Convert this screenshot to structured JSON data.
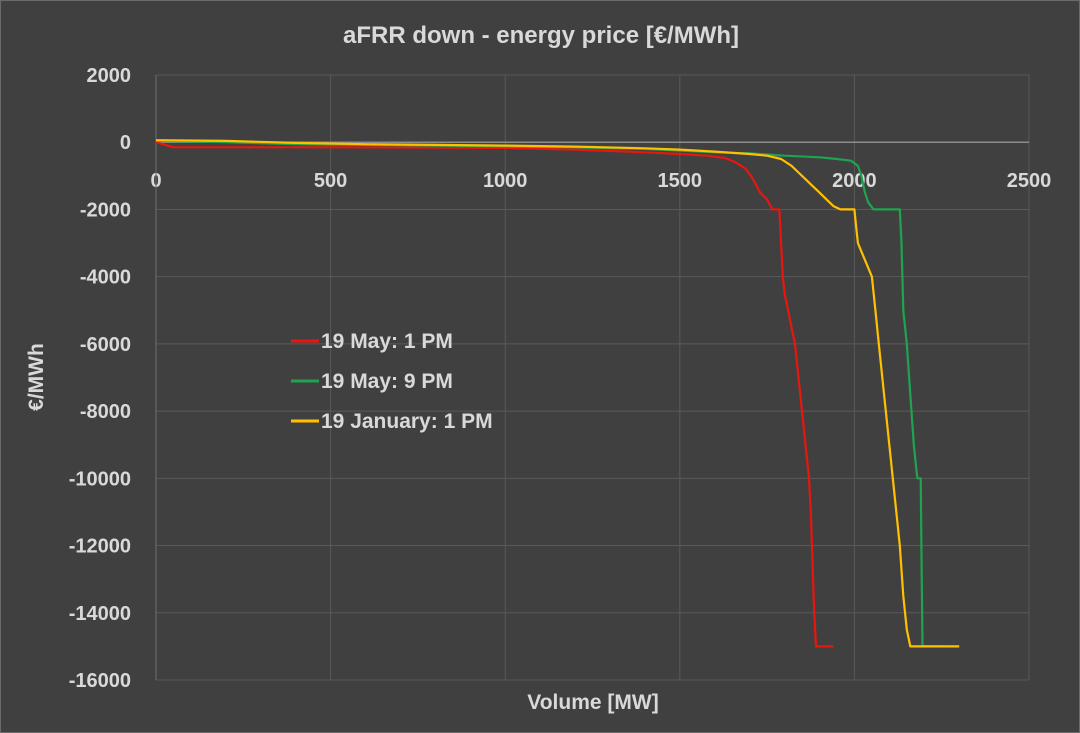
{
  "chart_data": {
    "type": "line",
    "title": "aFRR down - energy price [€/MWh]",
    "xlabel": "Volume [MW]",
    "ylabel": "€/MWh",
    "xlim": [
      0,
      2500
    ],
    "ylim": [
      -16000,
      2000
    ],
    "xticks": [
      0,
      500,
      1000,
      1500,
      2000,
      2500
    ],
    "yticks": [
      2000,
      0,
      -2000,
      -4000,
      -6000,
      -8000,
      -10000,
      -12000,
      -14000,
      -16000
    ],
    "grid": true,
    "legend_position": "center-left",
    "series": [
      {
        "name": "19 May: 1 PM",
        "color": "#e8160f",
        "points": [
          [
            0,
            0
          ],
          [
            20,
            -60
          ],
          [
            50,
            -150
          ],
          [
            100,
            -150
          ],
          [
            300,
            -150
          ],
          [
            500,
            -150
          ],
          [
            800,
            -160
          ],
          [
            1000,
            -170
          ],
          [
            1200,
            -220
          ],
          [
            1400,
            -300
          ],
          [
            1500,
            -350
          ],
          [
            1580,
            -400
          ],
          [
            1630,
            -470
          ],
          [
            1660,
            -600
          ],
          [
            1690,
            -800
          ],
          [
            1710,
            -1100
          ],
          [
            1730,
            -1500
          ],
          [
            1750,
            -1700
          ],
          [
            1765,
            -2000
          ],
          [
            1785,
            -2000
          ],
          [
            1790,
            -3000
          ],
          [
            1795,
            -4000
          ],
          [
            1800,
            -4500
          ],
          [
            1810,
            -5000
          ],
          [
            1820,
            -5500
          ],
          [
            1830,
            -6000
          ],
          [
            1840,
            -7000
          ],
          [
            1850,
            -8000
          ],
          [
            1860,
            -9000
          ],
          [
            1870,
            -10000
          ],
          [
            1875,
            -11000
          ],
          [
            1880,
            -12500
          ],
          [
            1885,
            -14000
          ],
          [
            1890,
            -15000
          ],
          [
            1940,
            -15000
          ]
        ]
      },
      {
        "name": "19 May: 9 PM",
        "color": "#1fa34f",
        "points": [
          [
            0,
            40
          ],
          [
            200,
            0
          ],
          [
            400,
            -60
          ],
          [
            600,
            -80
          ],
          [
            800,
            -100
          ],
          [
            1000,
            -120
          ],
          [
            1200,
            -150
          ],
          [
            1400,
            -200
          ],
          [
            1600,
            -300
          ],
          [
            1700,
            -330
          ],
          [
            1800,
            -400
          ],
          [
            1900,
            -450
          ],
          [
            1950,
            -500
          ],
          [
            1990,
            -550
          ],
          [
            2010,
            -700
          ],
          [
            2020,
            -1000
          ],
          [
            2030,
            -1500
          ],
          [
            2040,
            -1800
          ],
          [
            2055,
            -2000
          ],
          [
            2130,
            -2000
          ],
          [
            2135,
            -3000
          ],
          [
            2140,
            -5000
          ],
          [
            2150,
            -6000
          ],
          [
            2160,
            -7500
          ],
          [
            2170,
            -9000
          ],
          [
            2180,
            -10000
          ],
          [
            2190,
            -10000
          ],
          [
            2192,
            -12000
          ],
          [
            2195,
            -15000
          ],
          [
            2260,
            -15000
          ]
        ]
      },
      {
        "name": "19 January: 1 PM",
        "color": "#ffc000",
        "points": [
          [
            0,
            60
          ],
          [
            200,
            40
          ],
          [
            400,
            -20
          ],
          [
            600,
            -60
          ],
          [
            800,
            -80
          ],
          [
            1000,
            -100
          ],
          [
            1200,
            -130
          ],
          [
            1400,
            -180
          ],
          [
            1500,
            -220
          ],
          [
            1600,
            -280
          ],
          [
            1700,
            -350
          ],
          [
            1750,
            -400
          ],
          [
            1790,
            -500
          ],
          [
            1820,
            -700
          ],
          [
            1840,
            -900
          ],
          [
            1860,
            -1100
          ],
          [
            1880,
            -1300
          ],
          [
            1900,
            -1500
          ],
          [
            1920,
            -1700
          ],
          [
            1940,
            -1900
          ],
          [
            1960,
            -2000
          ],
          [
            2000,
            -2000
          ],
          [
            2005,
            -2500
          ],
          [
            2010,
            -3000
          ],
          [
            2030,
            -3500
          ],
          [
            2050,
            -4000
          ],
          [
            2060,
            -5000
          ],
          [
            2070,
            -6000
          ],
          [
            2080,
            -7000
          ],
          [
            2090,
            -8000
          ],
          [
            2100,
            -9000
          ],
          [
            2110,
            -10000
          ],
          [
            2120,
            -11000
          ],
          [
            2130,
            -12000
          ],
          [
            2140,
            -13500
          ],
          [
            2150,
            -14500
          ],
          [
            2160,
            -15000
          ],
          [
            2180,
            -15000
          ],
          [
            2300,
            -15000
          ]
        ]
      }
    ]
  }
}
